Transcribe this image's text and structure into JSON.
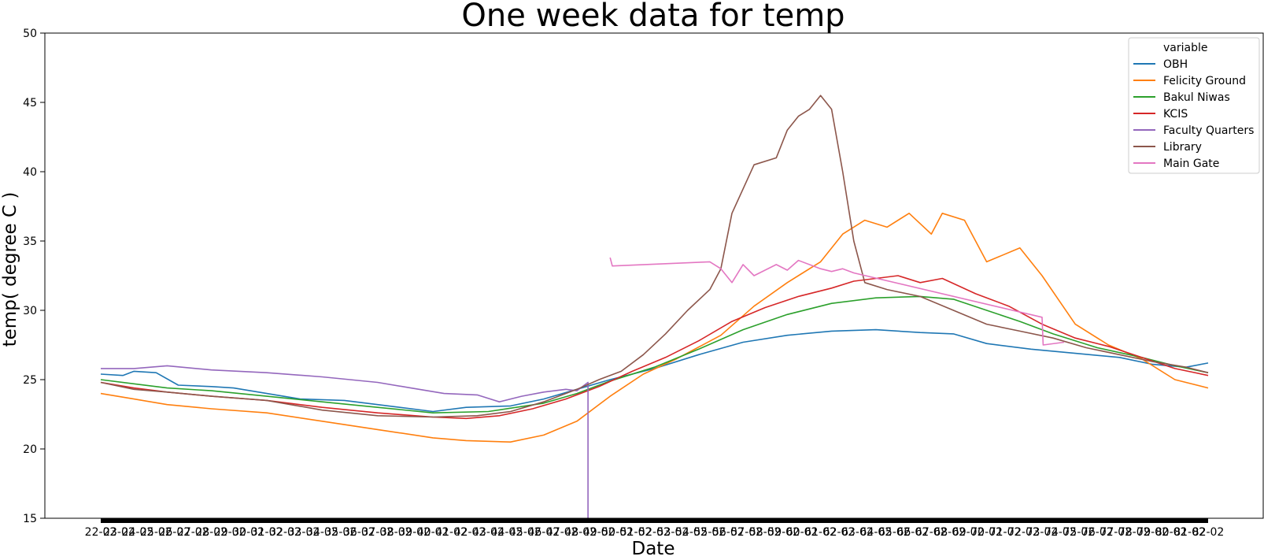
{
  "chart_data": {
    "type": "line",
    "title": "One week data for temp",
    "xlabel": "Date",
    "ylabel": "temp( degree C )",
    "ylim": [
      15,
      50
    ],
    "yticks": [
      15,
      20,
      25,
      30,
      35,
      40,
      45,
      50
    ],
    "xlim": [
      0,
      100
    ],
    "x_tick_labels": [
      "22-02",
      "23-02",
      "24-02",
      "25-02",
      "26-02",
      "27-02",
      "28-02",
      "29-02",
      "30-02",
      "31-02",
      "32-02",
      "33-02",
      "34-02",
      "35-02",
      "36-02",
      "37-02",
      "38-02",
      "39-02",
      "40-02",
      "41-02",
      "42-02",
      "43-02",
      "44-02",
      "45-02",
      "46-02",
      "47-02",
      "48-02",
      "49-02",
      "50-02",
      "51-02",
      "52-02",
      "53-02",
      "54-02",
      "55-02",
      "56-02",
      "57-02",
      "58-02",
      "59-02",
      "60-02",
      "61-02",
      "62-02",
      "63-02",
      "64-02",
      "65-02",
      "66-02",
      "67-02",
      "68-02",
      "69-02",
      "70-02",
      "71-02",
      "72-02",
      "73-02",
      "74-02",
      "75-02",
      "76-02",
      "77-02",
      "78-02",
      "79-02",
      "80-02",
      "81-02",
      "82-02"
    ],
    "grid": false,
    "legend": {
      "title": "variable",
      "position": "top-right"
    },
    "series": [
      {
        "name": "OBH",
        "color": "#1f77b4",
        "points": [
          [
            0,
            25.4
          ],
          [
            2,
            25.3
          ],
          [
            3,
            25.6
          ],
          [
            5,
            25.5
          ],
          [
            7,
            24.6
          ],
          [
            10,
            24.5
          ],
          [
            12,
            24.4
          ],
          [
            15,
            24.0
          ],
          [
            18,
            23.6
          ],
          [
            22,
            23.5
          ],
          [
            27,
            23.0
          ],
          [
            30,
            22.7
          ],
          [
            33,
            23.0
          ],
          [
            37,
            23.1
          ],
          [
            40,
            23.6
          ],
          [
            43,
            24.3
          ],
          [
            46,
            25.0
          ],
          [
            50,
            25.8
          ],
          [
            54,
            26.8
          ],
          [
            58,
            27.7
          ],
          [
            62,
            28.2
          ],
          [
            66,
            28.5
          ],
          [
            70,
            28.6
          ],
          [
            74,
            28.4
          ],
          [
            77,
            28.3
          ],
          [
            80,
            27.6
          ],
          [
            84,
            27.2
          ],
          [
            88,
            26.9
          ],
          [
            92,
            26.6
          ],
          [
            95,
            26.1
          ],
          [
            98,
            25.9
          ],
          [
            100,
            26.2
          ]
        ]
      },
      {
        "name": "Felicity Ground",
        "color": "#ff7f0e",
        "points": [
          [
            0,
            24.0
          ],
          [
            3,
            23.6
          ],
          [
            6,
            23.2
          ],
          [
            10,
            22.9
          ],
          [
            15,
            22.6
          ],
          [
            20,
            22.0
          ],
          [
            25,
            21.4
          ],
          [
            30,
            20.8
          ],
          [
            33,
            20.6
          ],
          [
            37,
            20.5
          ],
          [
            40,
            21.0
          ],
          [
            43,
            22.0
          ],
          [
            46,
            23.8
          ],
          [
            49,
            25.4
          ],
          [
            52,
            26.5
          ],
          [
            56,
            28.2
          ],
          [
            59,
            30.3
          ],
          [
            62,
            32.0
          ],
          [
            65,
            33.5
          ],
          [
            67,
            35.5
          ],
          [
            69,
            36.5
          ],
          [
            71,
            36.0
          ],
          [
            73,
            37.0
          ],
          [
            75,
            35.5
          ],
          [
            76,
            37.0
          ],
          [
            78,
            36.5
          ],
          [
            80,
            33.5
          ],
          [
            83,
            34.5
          ],
          [
            85,
            32.5
          ],
          [
            88,
            29.0
          ],
          [
            91,
            27.5
          ],
          [
            94,
            26.5
          ],
          [
            97,
            25.0
          ],
          [
            100,
            24.4
          ]
        ]
      },
      {
        "name": "Bakul Niwas",
        "color": "#2ca02c",
        "points": [
          [
            0,
            25.0
          ],
          [
            3,
            24.7
          ],
          [
            6,
            24.4
          ],
          [
            10,
            24.2
          ],
          [
            15,
            23.8
          ],
          [
            20,
            23.4
          ],
          [
            25,
            23.0
          ],
          [
            30,
            22.6
          ],
          [
            35,
            22.7
          ],
          [
            40,
            23.3
          ],
          [
            43,
            24.0
          ],
          [
            46,
            24.9
          ],
          [
            50,
            25.9
          ],
          [
            54,
            27.2
          ],
          [
            58,
            28.6
          ],
          [
            62,
            29.7
          ],
          [
            66,
            30.5
          ],
          [
            70,
            30.9
          ],
          [
            74,
            31.0
          ],
          [
            77,
            30.8
          ],
          [
            80,
            30.0
          ],
          [
            83,
            29.2
          ],
          [
            86,
            28.3
          ],
          [
            90,
            27.3
          ],
          [
            94,
            26.6
          ],
          [
            97,
            26.0
          ],
          [
            100,
            25.5
          ]
        ]
      },
      {
        "name": "KCIS",
        "color": "#d62728",
        "points": [
          [
            0,
            24.8
          ],
          [
            3,
            24.4
          ],
          [
            6,
            24.1
          ],
          [
            10,
            23.8
          ],
          [
            15,
            23.5
          ],
          [
            20,
            23.0
          ],
          [
            25,
            22.6
          ],
          [
            30,
            22.3
          ],
          [
            33,
            22.2
          ],
          [
            36,
            22.4
          ],
          [
            39,
            22.9
          ],
          [
            42,
            23.6
          ],
          [
            45,
            24.5
          ],
          [
            48,
            25.6
          ],
          [
            51,
            26.6
          ],
          [
            54,
            27.8
          ],
          [
            57,
            29.2
          ],
          [
            60,
            30.2
          ],
          [
            63,
            31.0
          ],
          [
            66,
            31.6
          ],
          [
            68,
            32.1
          ],
          [
            70,
            32.3
          ],
          [
            72,
            32.5
          ],
          [
            74,
            32.0
          ],
          [
            76,
            32.3
          ],
          [
            79,
            31.2
          ],
          [
            82,
            30.3
          ],
          [
            85,
            29.0
          ],
          [
            88,
            28.0
          ],
          [
            91,
            27.4
          ],
          [
            94,
            26.6
          ],
          [
            97,
            25.8
          ],
          [
            100,
            25.3
          ]
        ]
      },
      {
        "name": "Faculty Quarters",
        "color": "#9467bd",
        "points": [
          [
            0,
            25.8
          ],
          [
            3,
            25.8
          ],
          [
            6,
            26.0
          ],
          [
            10,
            25.7
          ],
          [
            15,
            25.5
          ],
          [
            20,
            25.2
          ],
          [
            25,
            24.8
          ],
          [
            28,
            24.4
          ],
          [
            31,
            24.0
          ],
          [
            34,
            23.9
          ],
          [
            36,
            23.4
          ],
          [
            38,
            23.8
          ],
          [
            40,
            24.1
          ],
          [
            42,
            24.3
          ],
          [
            43,
            24.2
          ],
          [
            44,
            24.8
          ],
          [
            44,
            15.0
          ]
        ]
      },
      {
        "name": "Library",
        "color": "#8c564b",
        "points": [
          [
            0,
            24.8
          ],
          [
            3,
            24.3
          ],
          [
            6,
            24.1
          ],
          [
            10,
            23.8
          ],
          [
            15,
            23.5
          ],
          [
            20,
            22.8
          ],
          [
            25,
            22.4
          ],
          [
            30,
            22.3
          ],
          [
            34,
            22.4
          ],
          [
            37,
            22.7
          ],
          [
            40,
            23.4
          ],
          [
            43,
            24.3
          ],
          [
            45,
            25.0
          ],
          [
            47,
            25.6
          ],
          [
            49,
            26.8
          ],
          [
            51,
            28.3
          ],
          [
            53,
            30.0
          ],
          [
            55,
            31.5
          ],
          [
            56,
            33.0
          ],
          [
            57,
            37.0
          ],
          [
            59,
            40.5
          ],
          [
            61,
            41.0
          ],
          [
            62,
            43.0
          ],
          [
            63,
            44.0
          ],
          [
            64,
            44.5
          ],
          [
            65,
            45.5
          ],
          [
            66,
            44.5
          ],
          [
            67,
            40.0
          ],
          [
            68,
            35.0
          ],
          [
            69,
            32.0
          ],
          [
            71,
            31.5
          ],
          [
            74,
            31.0
          ],
          [
            77,
            30.0
          ],
          [
            80,
            29.0
          ],
          [
            83,
            28.5
          ],
          [
            86,
            28.0
          ],
          [
            89,
            27.3
          ],
          [
            92,
            26.8
          ],
          [
            95,
            26.3
          ],
          [
            98,
            25.9
          ],
          [
            100,
            25.5
          ]
        ]
      },
      {
        "name": "Main Gate",
        "color": "#e377c2",
        "points": [
          [
            46,
            33.8
          ],
          [
            46.2,
            33.2
          ],
          [
            55,
            33.5
          ],
          [
            56,
            33.0
          ],
          [
            57,
            32.0
          ],
          [
            58,
            33.3
          ],
          [
            59,
            32.5
          ],
          [
            61,
            33.3
          ],
          [
            62,
            32.9
          ],
          [
            63,
            33.6
          ],
          [
            65,
            33.0
          ],
          [
            66,
            32.8
          ],
          [
            67,
            33.0
          ],
          [
            68,
            32.7
          ],
          [
            85,
            29.5
          ],
          [
            85.1,
            27.5
          ],
          [
            87,
            27.7
          ]
        ]
      }
    ]
  }
}
